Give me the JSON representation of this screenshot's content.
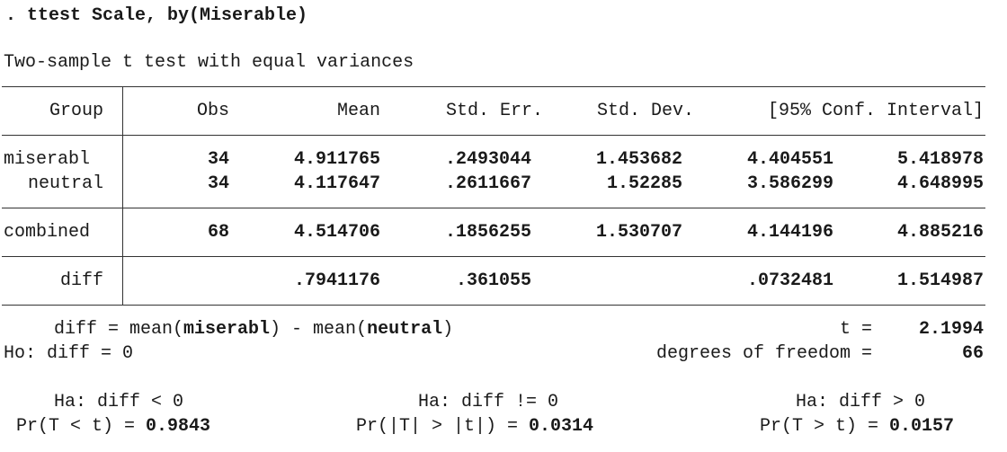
{
  "command": ". ttest Scale, by(Miserable)",
  "title": "Two-sample t test with equal variances",
  "headers": {
    "group": "Group",
    "obs": "Obs",
    "mean": "Mean",
    "se": "Std. Err.",
    "sd": "Std. Dev.",
    "ci": "[95% Conf. Interval]"
  },
  "rows": [
    {
      "group": "miserabl",
      "obs": "34",
      "mean": "4.911765",
      "se": ".2493044",
      "sd": "1.453682",
      "lo": "4.404551",
      "hi": "5.418978"
    },
    {
      "group": "neutral",
      "obs": "34",
      "mean": "4.117647",
      "se": ".2611667",
      "sd": "1.52285",
      "lo": "3.586299",
      "hi": "4.648995"
    },
    {
      "group": "combined",
      "obs": "68",
      "mean": "4.514706",
      "se": ".1856255",
      "sd": "1.530707",
      "lo": "4.144196",
      "hi": "4.885216"
    },
    {
      "group": "diff",
      "obs": "",
      "mean": ".7941176",
      "se": ".361055",
      "sd": "",
      "lo": ".0732481",
      "hi": "1.514987"
    }
  ],
  "diff_def": {
    "prefix": "diff = mean(",
    "g1": "miserabl",
    "mid": ") - mean(",
    "g2": "neutral",
    "suffix": ")"
  },
  "t_label": "t =",
  "t_value": "2.1994",
  "ho": "Ho: diff = 0",
  "df_label": "degrees of freedom =",
  "df_value": "66",
  "tests": [
    {
      "ha": "Ha: diff < 0",
      "pr_label": "Pr(T < t) =",
      "pr_value": "0.9843"
    },
    {
      "ha": "Ha: diff != 0",
      "pr_label": "Pr(|T| > |t|) =",
      "pr_value": "0.0314"
    },
    {
      "ha": "Ha: diff > 0",
      "pr_label": "Pr(T > t) =",
      "pr_value": "0.0157"
    }
  ]
}
